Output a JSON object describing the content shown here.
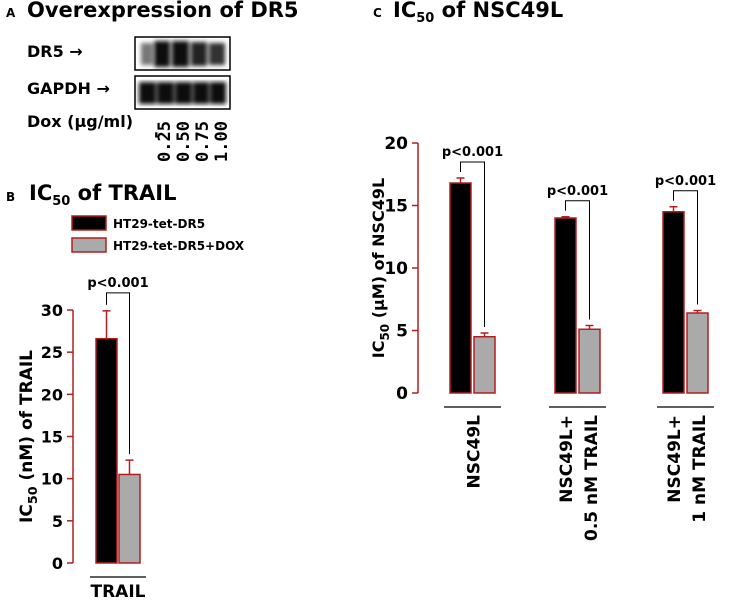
{
  "panel_a": {
    "letter": "A",
    "title": "Overexpression of DR5",
    "blot_labels": [
      "DR5 →",
      "GAPDH →"
    ],
    "dox_label": "Dox (μg/ml)",
    "dox_doses": [
      "-",
      "0.25",
      "0.50",
      "0.75",
      "1.00"
    ]
  },
  "panel_b_meta": {
    "letter": "B",
    "title_main": "IC",
    "title_sub": "50",
    "title_rest": " of TRAIL"
  },
  "panel_c_meta": {
    "letter": "C",
    "title_main": "IC",
    "title_sub": "50",
    "title_rest": " of NSC49L"
  },
  "colors": {
    "series1": "#000000",
    "series2": "#aaaaaa",
    "outline": "#b02020",
    "axis": "#b02020"
  },
  "chart_data": [
    {
      "type": "bar",
      "ylabel": "IC50 (nM) of TRAIL",
      "ylim": [
        0,
        30
      ],
      "yticks": [
        0,
        5,
        10,
        15,
        20,
        25,
        30
      ],
      "categories": [
        "TRAIL"
      ],
      "legend_position": "top-right",
      "series": [
        {
          "name": "HT29-tet-DR5",
          "values": [
            26.6
          ],
          "errors": [
            3.3
          ]
        },
        {
          "name": "HT29-tet-DR5+DOX",
          "values": [
            10.5
          ],
          "errors": [
            1.7
          ]
        }
      ],
      "annotations": [
        "p<0.001"
      ]
    },
    {
      "type": "bar",
      "ylabel": "IC50 (μM) of NSC49L",
      "ylim": [
        0,
        20
      ],
      "yticks": [
        0,
        5,
        10,
        15,
        20
      ],
      "categories": [
        "NSC49L",
        "NSC49L+\n0.5 nM TRAIL",
        "NSC49L+\n1 nM TRAIL"
      ],
      "series": [
        {
          "name": "HT29-tet-DR5",
          "values": [
            16.8,
            14.0,
            14.5
          ],
          "errors": [
            0.4,
            0.1,
            0.4
          ]
        },
        {
          "name": "HT29-tet-DR5+DOX",
          "values": [
            4.5,
            5.1,
            6.4
          ],
          "errors": [
            0.3,
            0.3,
            0.2
          ]
        }
      ],
      "annotations": [
        "p<0.001",
        "p<0.001",
        "p<0.001"
      ]
    }
  ]
}
